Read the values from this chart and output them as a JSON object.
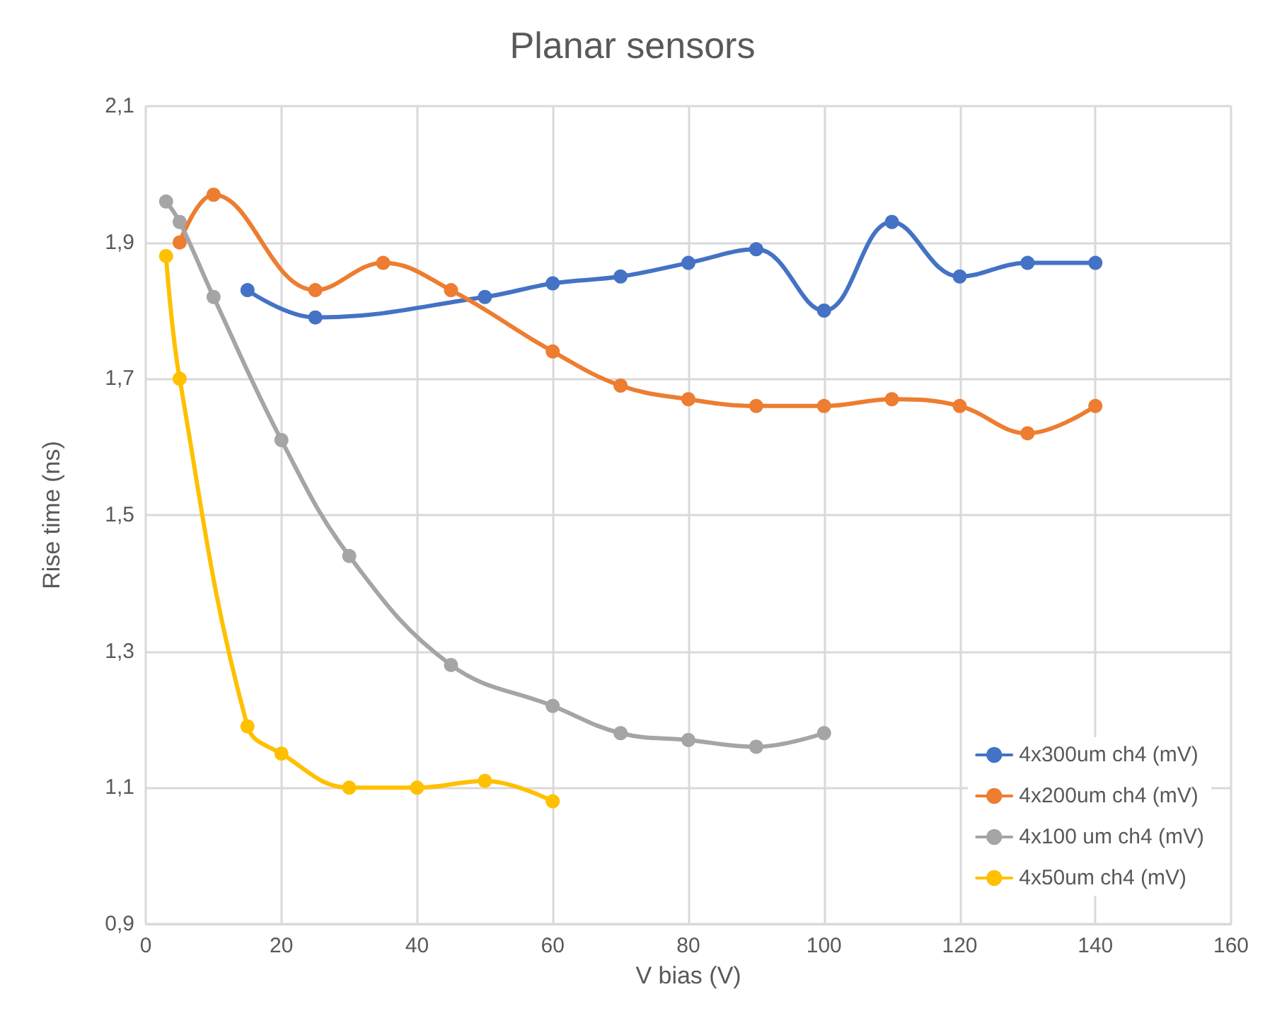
{
  "chart_data": {
    "type": "line",
    "title": "Planar sensors",
    "xlabel": "V bias (V)",
    "ylabel": "Rise time (ns)",
    "xlim": [
      0,
      160
    ],
    "xticks": [
      0,
      20,
      40,
      60,
      80,
      100,
      120,
      140,
      160
    ],
    "ylim": [
      0.9,
      2.1
    ],
    "yticks": [
      {
        "value": 0.9,
        "label": "0,9"
      },
      {
        "value": 1.1,
        "label": "1,1"
      },
      {
        "value": 1.3,
        "label": "1,3"
      },
      {
        "value": 1.5,
        "label": "1,5"
      },
      {
        "value": 1.7,
        "label": "1,7"
      },
      {
        "value": 1.9,
        "label": "1,9"
      },
      {
        "value": 2.1,
        "label": "2,1"
      }
    ],
    "grid": true,
    "legend": "bottom right",
    "marker": "circle",
    "line_style": "solid",
    "series": [
      {
        "name": "4x300um ch4 (mV)",
        "color": "#4472c4",
        "x": [
          15,
          25,
          50,
          60,
          70,
          80,
          90,
          100,
          110,
          120,
          130,
          140
        ],
        "values": [
          1.83,
          1.79,
          1.82,
          1.84,
          1.85,
          1.87,
          1.89,
          1.8,
          1.93,
          1.85,
          1.87,
          1.87
        ]
      },
      {
        "name": "4x200um ch4 (mV)",
        "color": "#ed7d31",
        "x": [
          5,
          10,
          25,
          35,
          45,
          60,
          70,
          80,
          90,
          100,
          110,
          120,
          130,
          140
        ],
        "values": [
          1.9,
          1.97,
          1.83,
          1.87,
          1.83,
          1.74,
          1.69,
          1.67,
          1.66,
          1.66,
          1.67,
          1.66,
          1.62,
          1.66
        ]
      },
      {
        "name": "4x100 um ch4 (mV)",
        "color": "#a5a5a5",
        "x": [
          3,
          5,
          10,
          20,
          30,
          45,
          60,
          70,
          80,
          90,
          100
        ],
        "values": [
          1.96,
          1.93,
          1.82,
          1.61,
          1.44,
          1.28,
          1.22,
          1.18,
          1.17,
          1.16,
          1.18
        ]
      },
      {
        "name": "4x50um ch4 (mV)",
        "color": "#ffc000",
        "x": [
          3,
          5,
          15,
          20,
          30,
          40,
          50,
          60
        ],
        "values": [
          1.88,
          1.7,
          1.19,
          1.15,
          1.1,
          1.1,
          1.11,
          1.08
        ]
      }
    ]
  }
}
